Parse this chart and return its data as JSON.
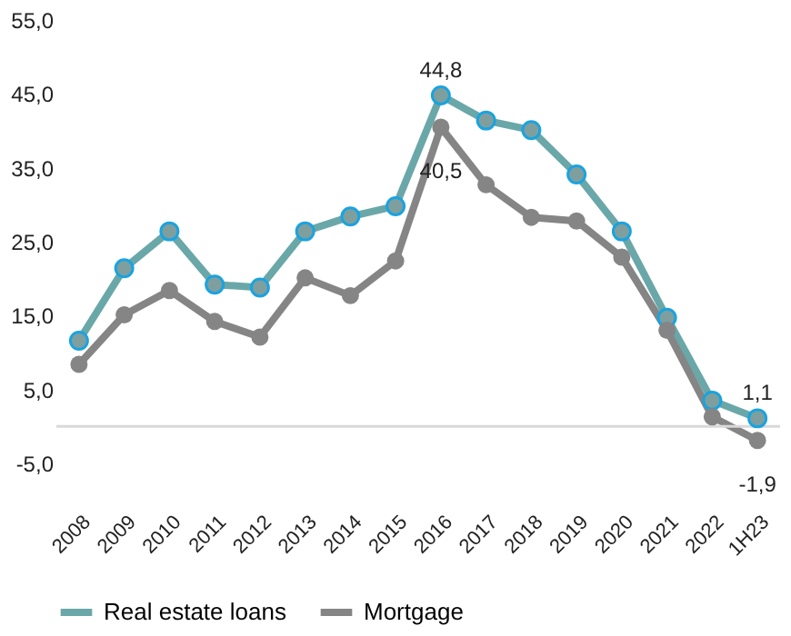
{
  "chart_data": {
    "type": "line",
    "categories": [
      "2008",
      "2009",
      "2010",
      "2011",
      "2012",
      "2013",
      "2014",
      "2015",
      "2016",
      "2017",
      "2018",
      "2019",
      "2020",
      "2021",
      "2022",
      "1H23"
    ],
    "series": [
      {
        "name": "Real estate loans",
        "color": "#6aa7a8",
        "values": [
          11.6,
          21.4,
          26.4,
          19.2,
          18.8,
          26.4,
          28.4,
          29.8,
          44.8,
          41.4,
          40.1,
          34.1,
          26.4,
          14.7,
          3.5,
          1.1
        ],
        "value_labels": [
          null,
          null,
          null,
          null,
          null,
          null,
          null,
          null,
          "44,8",
          null,
          null,
          null,
          null,
          null,
          null,
          "1,1"
        ]
      },
      {
        "name": "Mortgage",
        "color": "#858585",
        "values": [
          8.4,
          15.1,
          18.4,
          14.2,
          12.1,
          20.1,
          17.7,
          22.4,
          40.5,
          32.7,
          28.3,
          27.8,
          22.9,
          13.0,
          1.3,
          -1.9
        ],
        "value_labels": [
          null,
          null,
          null,
          null,
          null,
          null,
          null,
          null,
          "40,5",
          null,
          null,
          null,
          null,
          null,
          null,
          "-1,9"
        ]
      }
    ],
    "ylim": [
      -5,
      55
    ],
    "yticks": [
      {
        "value": -5,
        "label": "-5,0"
      },
      {
        "value": 5,
        "label": "5,0"
      },
      {
        "value": 15,
        "label": "15,0"
      },
      {
        "value": 25,
        "label": "25,0"
      },
      {
        "value": 35,
        "label": "35,0"
      },
      {
        "value": 45,
        "label": "45,0"
      },
      {
        "value": 55,
        "label": "55,0"
      }
    ],
    "ref_lines": [
      {
        "axis": "y",
        "value": 0,
        "color": "#d9d9d9"
      }
    ],
    "grid": false,
    "legend": "bottom",
    "marker": "circle",
    "line_style": "solid"
  }
}
